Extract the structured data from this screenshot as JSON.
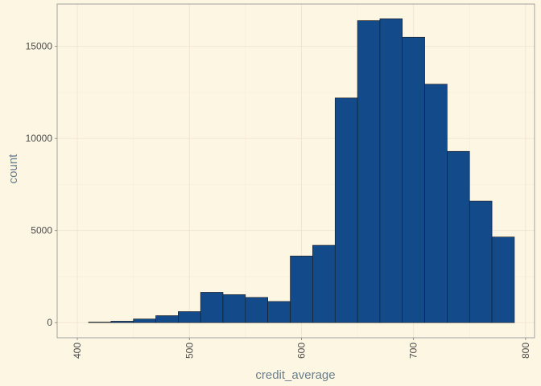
{
  "chart_data": {
    "type": "bar",
    "subtype": "histogram",
    "xlabel": "credit_average",
    "ylabel": "count",
    "bin_width": 20,
    "bins": [
      {
        "x0": 410,
        "x1": 430,
        "count": 30
      },
      {
        "x0": 430,
        "x1": 450,
        "count": 80
      },
      {
        "x0": 450,
        "x1": 470,
        "count": 200
      },
      {
        "x0": 470,
        "x1": 490,
        "count": 380
      },
      {
        "x0": 490,
        "x1": 510,
        "count": 600
      },
      {
        "x0": 510,
        "x1": 530,
        "count": 1650
      },
      {
        "x0": 530,
        "x1": 550,
        "count": 1520
      },
      {
        "x0": 550,
        "x1": 570,
        "count": 1370
      },
      {
        "x0": 570,
        "x1": 590,
        "count": 1150
      },
      {
        "x0": 590,
        "x1": 610,
        "count": 3620
      },
      {
        "x0": 610,
        "x1": 630,
        "count": 4200
      },
      {
        "x0": 630,
        "x1": 650,
        "count": 12200
      },
      {
        "x0": 650,
        "x1": 670,
        "count": 16400
      },
      {
        "x0": 670,
        "x1": 690,
        "count": 16500
      },
      {
        "x0": 690,
        "x1": 710,
        "count": 15500
      },
      {
        "x0": 710,
        "x1": 730,
        "count": 12950
      },
      {
        "x0": 730,
        "x1": 750,
        "count": 9300
      },
      {
        "x0": 750,
        "x1": 770,
        "count": 6600
      },
      {
        "x0": 770,
        "x1": 790,
        "count": 4650
      }
    ],
    "xlim": [
      382,
      808
    ],
    "ylim": [
      -820,
      17300
    ],
    "x_ticks": [
      400,
      500,
      600,
      700,
      800
    ],
    "y_ticks": [
      0,
      5000,
      10000,
      15000
    ],
    "grid": true,
    "colors": {
      "background": "#fdf6e3",
      "bar_fill": "#134b8a",
      "bar_edge": "#1a1a1a",
      "panel_border": "#9a9a9a"
    }
  }
}
